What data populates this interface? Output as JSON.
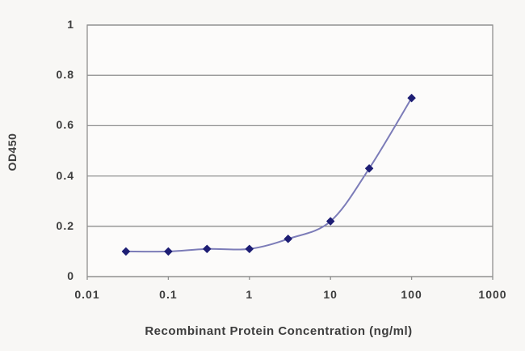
{
  "chart_data": {
    "type": "line",
    "title": "",
    "xlabel": "Recombinant Protein Concentration (ng/ml)",
    "ylabel": "OD450",
    "xscale": "log",
    "xlim": [
      0.01,
      1000
    ],
    "ylim": [
      0,
      1
    ],
    "x_ticks": [
      0.01,
      0.1,
      1,
      10,
      100,
      1000
    ],
    "x_tick_labels": [
      "0.01",
      "0.1",
      "1",
      "10",
      "100",
      "1000"
    ],
    "y_ticks": [
      0,
      0.2,
      0.4,
      0.6,
      0.8,
      1
    ],
    "y_tick_labels": [
      "0",
      "0.2",
      "0.4",
      "0.6",
      "0.8",
      "1"
    ],
    "grid": "horizontal",
    "legend_position": "none",
    "series": [
      {
        "name": "OD450",
        "x": [
          0.03,
          0.1,
          0.3,
          1,
          3,
          10,
          30,
          100
        ],
        "y": [
          0.1,
          0.1,
          0.11,
          0.11,
          0.15,
          0.22,
          0.43,
          0.71
        ],
        "marker": "diamond"
      }
    ]
  },
  "colors": {
    "background": "#f8f7f5",
    "plot_background": "#fcfbfa",
    "grid": "#8f8f8f",
    "frame": "#8f8f8f",
    "line": "#7c7cb8",
    "marker": "#1e1e74",
    "text": "#3d3d3d"
  }
}
